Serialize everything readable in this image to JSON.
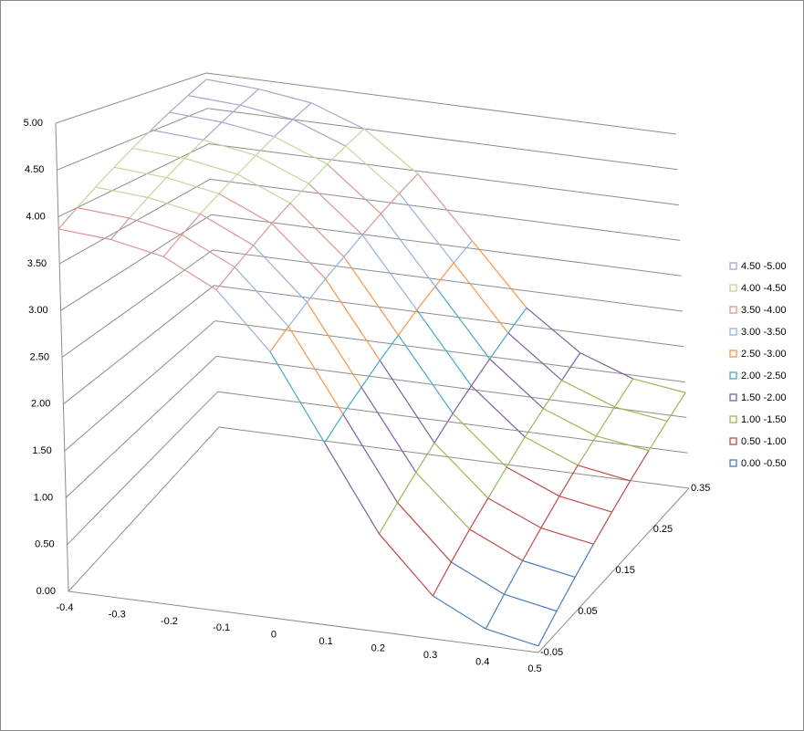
{
  "chart_data": {
    "type": "surface",
    "categories": [
      "-0.4",
      "-0.3",
      "-0.2",
      "-0.1",
      "0",
      "0.1",
      "0.2",
      "0.3",
      "0.4",
      "0.5"
    ],
    "depth_categories": [
      "-0.05",
      null,
      "0.05",
      null,
      "0.15",
      null,
      "0.25",
      null,
      "0.35"
    ],
    "values": [
      [
        3.87,
        3.83,
        3.72,
        3.44,
        2.85,
        1.95,
        1.05,
        0.46,
        0.18,
        0.07
      ],
      [
        4.0,
        3.96,
        3.85,
        3.57,
        2.99,
        2.1,
        1.2,
        0.62,
        0.34,
        0.23
      ],
      [
        4.13,
        4.09,
        3.98,
        3.7,
        3.13,
        2.24,
        1.35,
        0.78,
        0.5,
        0.39
      ],
      [
        4.26,
        4.22,
        4.11,
        3.84,
        3.27,
        2.39,
        1.5,
        0.93,
        0.66,
        0.55
      ],
      [
        4.39,
        4.35,
        4.24,
        3.97,
        3.4,
        2.53,
        1.66,
        1.09,
        0.82,
        0.71
      ],
      [
        4.52,
        4.48,
        4.37,
        4.1,
        3.54,
        2.68,
        1.81,
        1.25,
        0.98,
        0.87
      ],
      [
        4.65,
        4.61,
        4.51,
        4.24,
        3.68,
        2.82,
        1.96,
        1.4,
        1.13,
        1.03
      ],
      [
        4.78,
        4.74,
        4.64,
        4.37,
        3.82,
        2.97,
        2.11,
        1.56,
        1.29,
        1.19
      ],
      [
        4.91,
        4.87,
        4.77,
        4.5,
        3.96,
        3.11,
        2.26,
        1.72,
        1.45,
        1.35
      ]
    ],
    "zlim": [
      0,
      5
    ],
    "zticks": [
      {
        "value": 0,
        "label": "0.00"
      },
      {
        "value": 0.5,
        "label": "0.50"
      },
      {
        "value": 1,
        "label": "1.00"
      },
      {
        "value": 1.5,
        "label": "1.50"
      },
      {
        "value": 2,
        "label": "2.00"
      },
      {
        "value": 2.5,
        "label": "2.50"
      },
      {
        "value": 3,
        "label": "3.00"
      },
      {
        "value": 3.5,
        "label": "3.50"
      },
      {
        "value": 4,
        "label": "4.00"
      },
      {
        "value": 4.5,
        "label": "4.50"
      },
      {
        "value": 5,
        "label": "5.00"
      }
    ],
    "grid": true,
    "legend_position": "right",
    "legend": [
      {
        "name": "0.00 -0.50",
        "color": "#4a7ebb"
      },
      {
        "name": "0.50 -1.00",
        "color": "#be4b48"
      },
      {
        "name": "1.00 -1.50",
        "color": "#98b954"
      },
      {
        "name": "1.50 -2.00",
        "color": "#7d60a0"
      },
      {
        "name": "2.00 -2.50",
        "color": "#46aac5"
      },
      {
        "name": "2.50 -3.00",
        "color": "#f79646"
      },
      {
        "name": "3.00 -3.50",
        "color": "#95b3d7"
      },
      {
        "name": "3.50 -4.00",
        "color": "#d99694"
      },
      {
        "name": "4.00 -4.50",
        "color": "#c3d69b"
      },
      {
        "name": "4.50 -5.00",
        "color": "#b3a2c7"
      }
    ]
  }
}
